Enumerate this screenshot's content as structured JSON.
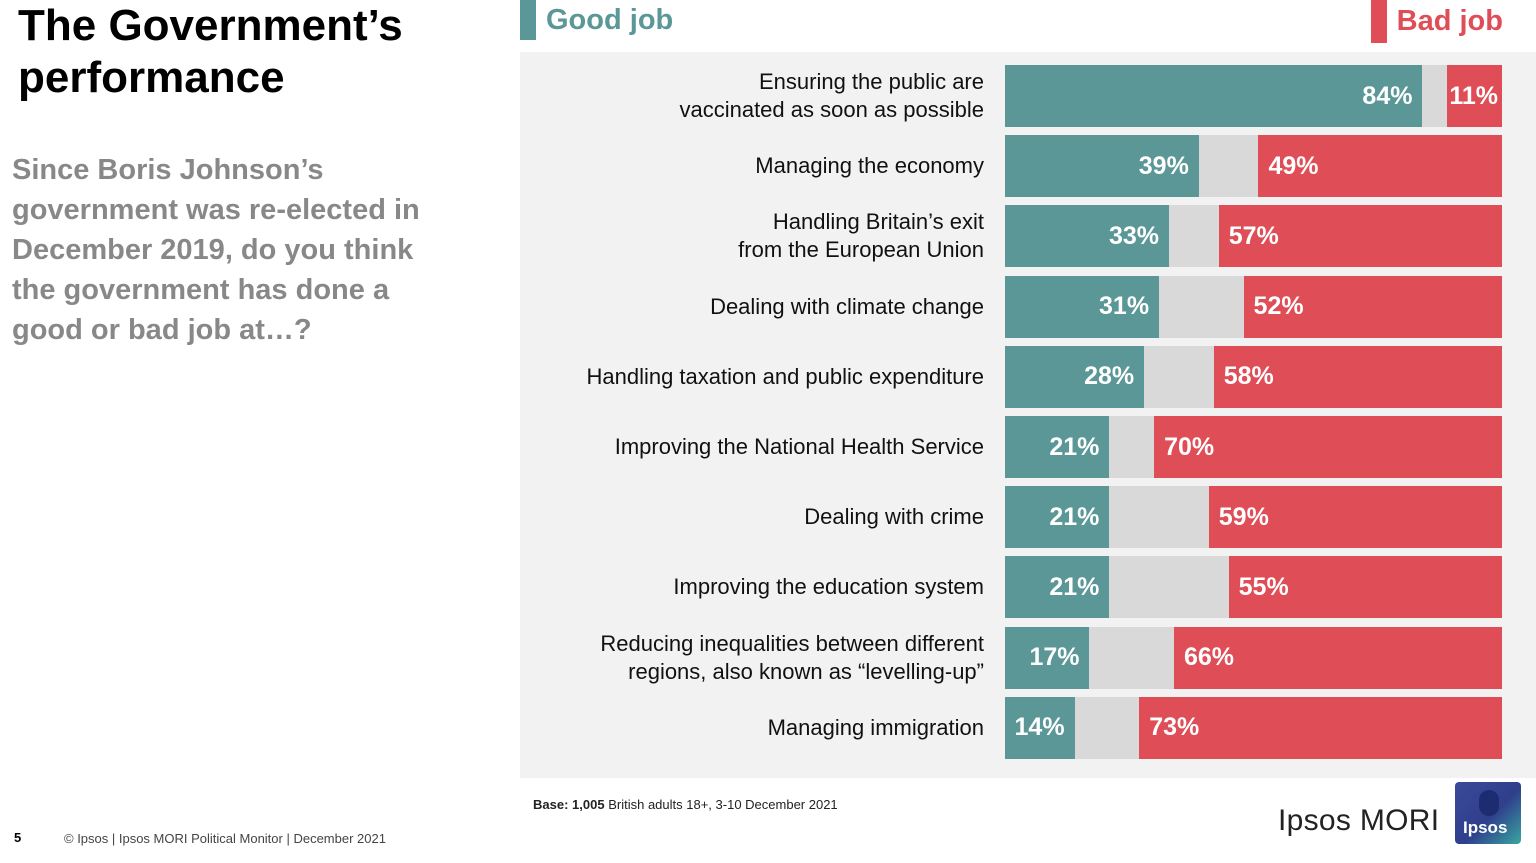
{
  "title": "The Government’s performance",
  "question": "Since Boris Johnson’s government was re-elected in December 2019, do you think the government has done a good or bad job at…?",
  "legend": {
    "good": {
      "label": "Good job",
      "color": "#5b9797"
    },
    "bad": {
      "label": "Bad job",
      "color": "#df4d57"
    }
  },
  "neutral_color": "#d9d9d9",
  "chart_data": {
    "type": "bar",
    "orientation": "horizontal-stacked",
    "categories": [
      "Ensuring the public are vaccinated as soon as possible",
      "Managing the economy",
      "Handling Britain’s exit from the European Union",
      "Dealing with climate change",
      "Handling taxation and public expenditure",
      "Improving the National Health Service",
      "Dealing with crime",
      "Improving the education system",
      "Reducing inequalities between different regions, also known as “levelling-up”",
      "Managing immigration"
    ],
    "series": [
      {
        "name": "Good job",
        "values": [
          84,
          39,
          33,
          31,
          28,
          21,
          21,
          21,
          17,
          14
        ]
      },
      {
        "name": "Bad job",
        "values": [
          11,
          49,
          57,
          52,
          58,
          70,
          59,
          55,
          66,
          73
        ]
      }
    ],
    "value_labels": {
      "good": [
        "84%",
        "39%",
        "33%",
        "31%",
        "28%",
        "21%",
        "21%",
        "21%",
        "17%",
        "14%"
      ],
      "bad": [
        "11%",
        "49%",
        "57%",
        "52%",
        "58%",
        "70%",
        "59%",
        "55%",
        "66%",
        "73%"
      ]
    },
    "xlim": [
      0,
      100
    ],
    "legend_position": "top"
  },
  "rows": [
    {
      "label_lines": [
        "Ensuring the public are",
        "vaccinated as soon as possible"
      ]
    },
    {
      "label_lines": [
        "Managing the economy"
      ]
    },
    {
      "label_lines": [
        "Handling Britain’s exit",
        "from the European Union"
      ]
    },
    {
      "label_lines": [
        "Dealing with climate change"
      ]
    },
    {
      "label_lines": [
        "Handling taxation and public expenditure"
      ]
    },
    {
      "label_lines": [
        "Improving the National Health Service"
      ]
    },
    {
      "label_lines": [
        "Dealing with crime"
      ]
    },
    {
      "label_lines": [
        "Improving the education system"
      ]
    },
    {
      "label_lines": [
        "Reducing inequalities between different",
        "regions, also known as “levelling-up”"
      ]
    },
    {
      "label_lines": [
        "Managing immigration"
      ]
    }
  ],
  "base": {
    "label": "Base:",
    "sample": "1,005",
    "text": "British adults 18+, 3-10 December 2021"
  },
  "page_number": "5",
  "footer": "© Ipsos | Ipsos MORI Political Monitor | December 2021",
  "brand": {
    "name": "Ipsos MORI",
    "logo_text": "Ipsos"
  }
}
